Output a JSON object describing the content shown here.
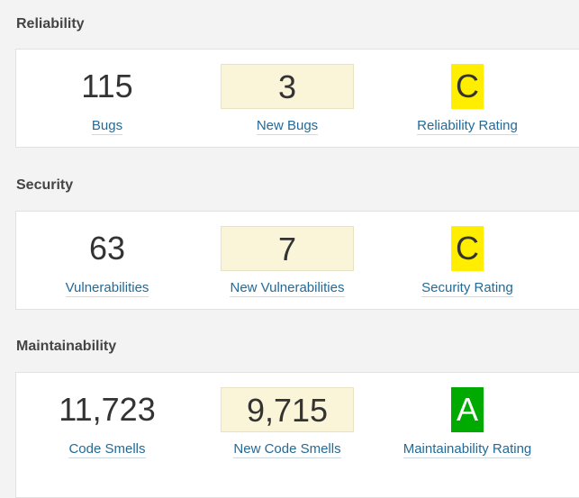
{
  "sections": [
    {
      "title": "Reliability",
      "metric": {
        "value": "115",
        "label": "Bugs"
      },
      "new_metric": {
        "value": "3",
        "label": "New Bugs"
      },
      "rating": {
        "value": "C",
        "label": "Reliability Rating",
        "color": "#ffee00"
      }
    },
    {
      "title": "Security",
      "metric": {
        "value": "63",
        "label": "Vulnerabilities"
      },
      "new_metric": {
        "value": "7",
        "label": "New Vulnerabilities"
      },
      "rating": {
        "value": "C",
        "label": "Security Rating",
        "color": "#ffee00"
      }
    },
    {
      "title": "Maintainability",
      "metric": {
        "value": "11,723",
        "label": "Code Smells"
      },
      "new_metric": {
        "value": "9,715",
        "label": "New Code Smells"
      },
      "rating": {
        "value": "A",
        "label": "Maintainability Rating",
        "color": "#00aa00"
      }
    }
  ],
  "colors": {
    "new_value_bg": "#faf4d8",
    "link": "#236a97",
    "rating_c": "#ffee00",
    "rating_a": "#00aa00"
  }
}
